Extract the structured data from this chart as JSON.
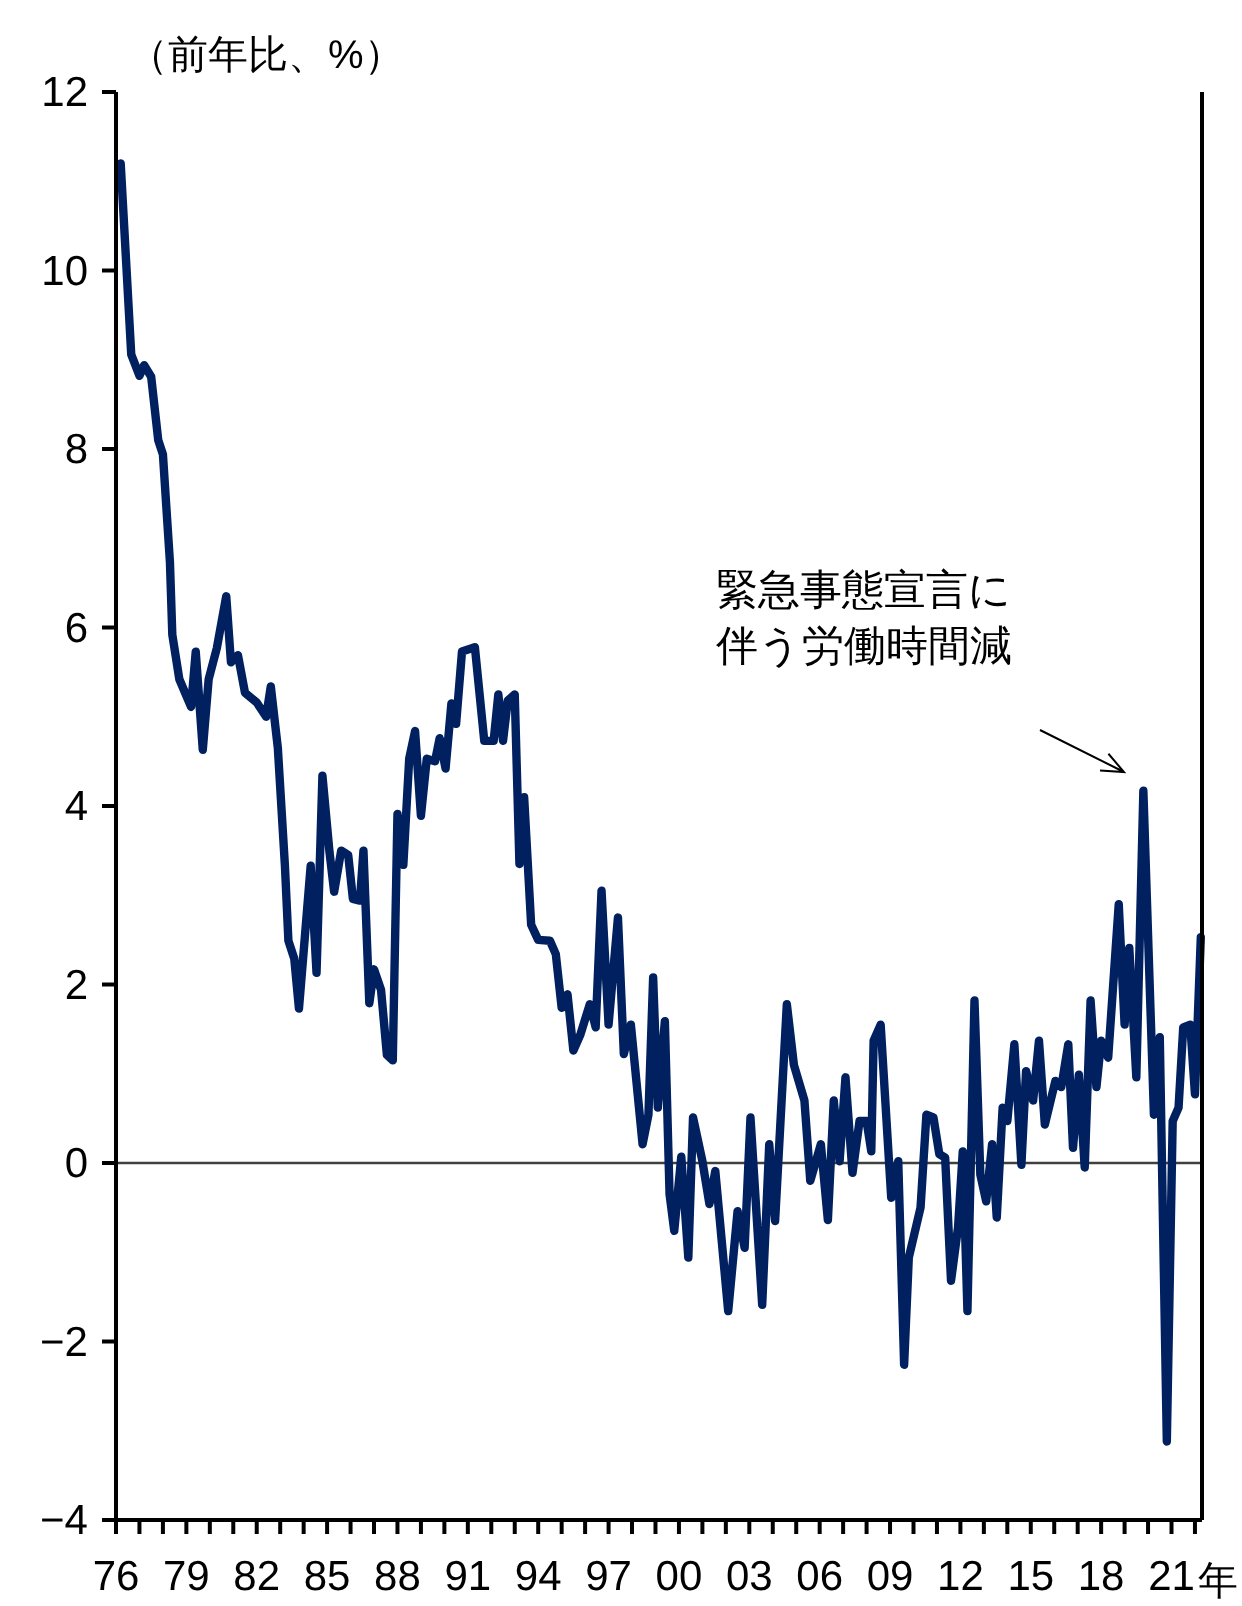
{
  "chart_data": {
    "type": "line",
    "ylabel": "（前年比、%）",
    "xlabel": "年",
    "x": [
      1976.2,
      1976.65,
      1977.0,
      1977.2,
      1977.5,
      1977.8,
      1978.0,
      1978.3,
      1978.4,
      1978.7,
      1979.2,
      1979.4,
      1979.7,
      1979.95,
      1980.3,
      1980.7,
      1980.9,
      1981.2,
      1981.5,
      1982.0,
      1982.4,
      1982.6,
      1982.9,
      1983.2,
      1983.35,
      1983.6,
      1983.8,
      1984.3,
      1984.55,
      1984.8,
      1985.1,
      1985.3,
      1985.6,
      1985.9,
      1986.1,
      1986.4,
      1986.55,
      1986.8,
      1987.0,
      1987.3,
      1987.55,
      1987.8,
      1988.0,
      1988.25,
      1988.5,
      1988.75,
      1989.0,
      1989.25,
      1989.6,
      1989.8,
      1990.05,
      1990.3,
      1990.5,
      1990.75,
      1991.2,
      1991.3,
      1991.7,
      1992.1,
      1992.3,
      1992.5,
      1992.7,
      1993.0,
      1993.2,
      1993.4,
      1993.7,
      1994.0,
      1994.5,
      1994.75,
      1995.0,
      1995.25,
      1995.5,
      1995.8,
      1996.2,
      1996.45,
      1996.7,
      1997.0,
      1997.4,
      1997.65,
      1997.95,
      1998.45,
      1998.7,
      1998.9,
      1999.1,
      1999.4,
      1999.6,
      1999.8,
      2000.1,
      2000.4,
      2000.6,
      2001.0,
      2001.3,
      2001.55,
      2002.1,
      2002.5,
      2002.8,
      2003.05,
      2003.55,
      2003.85,
      2004.1,
      2004.6,
      2004.9,
      2005.35,
      2005.6,
      2006.05,
      2006.35,
      2006.6,
      2006.85,
      2007.1,
      2007.4,
      2007.7,
      2008.0,
      2008.2,
      2008.3,
      2008.6,
      2009.05,
      2009.35,
      2009.6,
      2009.8,
      2010.3,
      2010.55,
      2010.85,
      2011.1,
      2011.35,
      2011.6,
      2011.9,
      2012.1,
      2012.3,
      2012.6,
      2012.85,
      2013.1,
      2013.35,
      2013.55,
      2013.8,
      2014.0,
      2014.3,
      2014.6,
      2014.8,
      2015.1,
      2015.35,
      2015.6,
      2016.05,
      2016.3,
      2016.6,
      2016.8,
      2017.05,
      2017.3,
      2017.55,
      2017.8,
      2018.0,
      2018.3,
      2018.75,
      2019.0,
      2019.2,
      2019.5,
      2019.8,
      2020.25,
      2020.5,
      2020.8,
      2021.05,
      2021.3,
      2021.5,
      2021.8,
      2022.0,
      2022.25
    ],
    "series": [
      {
        "color": "#002060",
        "values": [
          11.2,
          9.06,
          8.82,
          8.94,
          8.81,
          8.1,
          7.94,
          6.73,
          5.92,
          5.42,
          5.11,
          5.73,
          4.63,
          5.42,
          5.77,
          6.35,
          5.61,
          5.69,
          5.27,
          5.16,
          5.0,
          5.34,
          4.65,
          3.34,
          2.49,
          2.29,
          1.73,
          3.33,
          2.13,
          4.34,
          3.49,
          3.04,
          3.5,
          3.45,
          2.96,
          2.94,
          3.5,
          1.79,
          2.17,
          1.94,
          1.21,
          1.15,
          3.91,
          3.34,
          4.53,
          4.84,
          3.89,
          4.53,
          4.5,
          4.76,
          4.42,
          5.15,
          4.92,
          5.73,
          5.77,
          5.78,
          4.73,
          4.73,
          5.25,
          4.73,
          5.18,
          5.25,
          3.35,
          4.1,
          2.67,
          2.5,
          2.49,
          2.34,
          1.74,
          1.89,
          1.26,
          1.44,
          1.78,
          1.52,
          3.05,
          1.55,
          2.75,
          1.22,
          1.55,
          0.21,
          0.54,
          2.08,
          0.62,
          1.59,
          -0.35,
          -0.76,
          0.07,
          -1.06,
          0.51,
          0.02,
          -0.46,
          -0.09,
          -1.66,
          -0.54,
          -0.95,
          0.51,
          -1.59,
          0.21,
          -0.65,
          1.78,
          1.1,
          0.7,
          -0.2,
          0.21,
          -0.64,
          0.7,
          0.02,
          0.96,
          -0.11,
          0.47,
          0.47,
          0.13,
          1.37,
          1.55,
          -0.39,
          0.02,
          -2.26,
          -1.06,
          -0.5,
          0.54,
          0.51,
          0.1,
          0.06,
          -1.32,
          -0.72,
          0.13,
          -1.66,
          1.82,
          -0.13,
          -0.43,
          0.21,
          -0.61,
          0.62,
          0.47,
          1.33,
          -0.02,
          1.03,
          0.7,
          1.37,
          0.43,
          0.92,
          0.85,
          1.33,
          0.17,
          0.99,
          -0.05,
          1.82,
          0.85,
          1.37,
          1.18,
          2.9,
          1.55,
          2.41,
          0.96,
          4.17,
          0.54,
          1.41,
          -3.12,
          0.47,
          0.62,
          1.52,
          1.55,
          0.77,
          2.53
        ]
      }
    ],
    "xlim": [
      1976,
      2022.3
    ],
    "xticks": [
      {
        "value": 1976,
        "label": "76"
      },
      {
        "value": 1977,
        "label": null
      },
      {
        "value": 1978,
        "label": null
      },
      {
        "value": 1979,
        "label": "79"
      },
      {
        "value": 1980,
        "label": null
      },
      {
        "value": 1981,
        "label": null
      },
      {
        "value": 1982,
        "label": "82"
      },
      {
        "value": 1983,
        "label": null
      },
      {
        "value": 1984,
        "label": null
      },
      {
        "value": 1985,
        "label": "85"
      },
      {
        "value": 1986,
        "label": null
      },
      {
        "value": 1987,
        "label": null
      },
      {
        "value": 1988,
        "label": "88"
      },
      {
        "value": 1989,
        "label": null
      },
      {
        "value": 1990,
        "label": null
      },
      {
        "value": 1991,
        "label": "91"
      },
      {
        "value": 1992,
        "label": null
      },
      {
        "value": 1993,
        "label": null
      },
      {
        "value": 1994,
        "label": "94"
      },
      {
        "value": 1995,
        "label": null
      },
      {
        "value": 1996,
        "label": null
      },
      {
        "value": 1997,
        "label": "97"
      },
      {
        "value": 1998,
        "label": null
      },
      {
        "value": 1999,
        "label": null
      },
      {
        "value": 2000,
        "label": "00"
      },
      {
        "value": 2001,
        "label": null
      },
      {
        "value": 2002,
        "label": null
      },
      {
        "value": 2003,
        "label": "03"
      },
      {
        "value": 2004,
        "label": null
      },
      {
        "value": 2005,
        "label": null
      },
      {
        "value": 2006,
        "label": "06"
      },
      {
        "value": 2007,
        "label": null
      },
      {
        "value": 2008,
        "label": null
      },
      {
        "value": 2009,
        "label": "09"
      },
      {
        "value": 2010,
        "label": null
      },
      {
        "value": 2011,
        "label": null
      },
      {
        "value": 2012,
        "label": "12"
      },
      {
        "value": 2013,
        "label": null
      },
      {
        "value": 2014,
        "label": null
      },
      {
        "value": 2015,
        "label": "15"
      },
      {
        "value": 2016,
        "label": null
      },
      {
        "value": 2017,
        "label": null
      },
      {
        "value": 2018,
        "label": "18"
      },
      {
        "value": 2019,
        "label": null
      },
      {
        "value": 2020,
        "label": null
      },
      {
        "value": 2021,
        "label": "21"
      },
      {
        "value": 2022,
        "label": null
      }
    ],
    "ylim": [
      -4,
      12
    ],
    "yticks": [
      {
        "value": -4,
        "label": "−4"
      },
      {
        "value": -2,
        "label": "−2"
      },
      0,
      2,
      4,
      6,
      8,
      10,
      12
    ],
    "ref_lines": [
      {
        "axis": "y",
        "value": 0,
        "color": "#404040"
      }
    ],
    "annotations": [
      "緊急事態宣言に伴う労働時間減"
    ],
    "grid": false,
    "line_style": "solid",
    "marker": "none"
  }
}
